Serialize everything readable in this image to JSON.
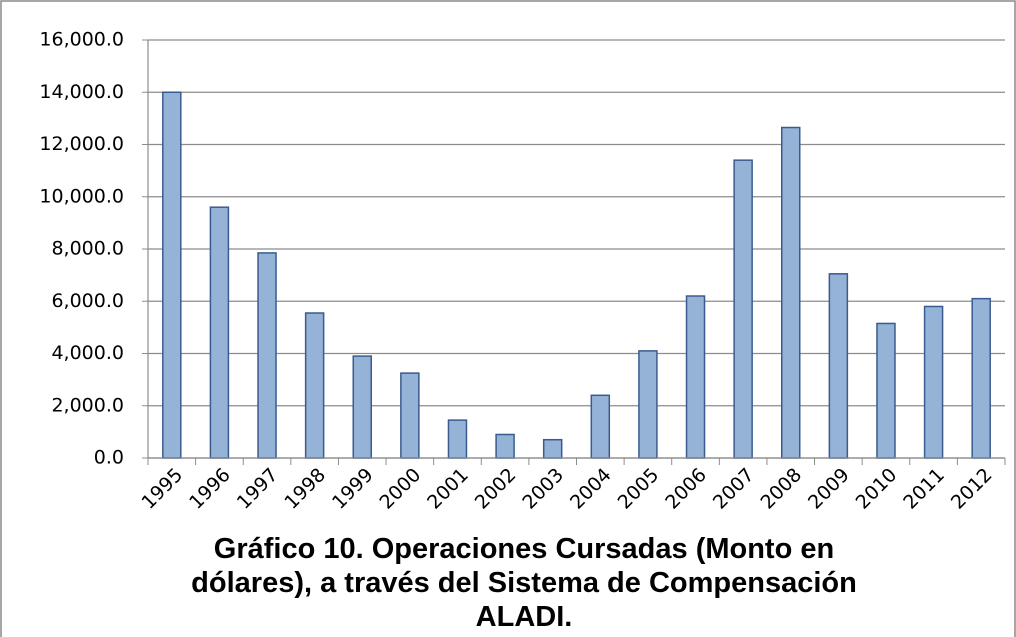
{
  "chart_data": {
    "type": "bar",
    "title": "Gráfico 10. Operaciones Cursadas (Monto en dólares), a través del Sistema de Compensación ALADI.",
    "categories": [
      "1995",
      "1996",
      "1997",
      "1998",
      "1999",
      "2000",
      "2001",
      "2002",
      "2003",
      "2004",
      "2005",
      "2006",
      "2007",
      "2008",
      "2009",
      "2010",
      "2011",
      "2012"
    ],
    "values": [
      14000,
      9600,
      7850,
      5550,
      3900,
      3250,
      1450,
      900,
      700,
      2400,
      4100,
      6200,
      11400,
      12650,
      7050,
      5150,
      5800,
      6100
    ],
    "color": "#95b3d7",
    "ylim": [
      0,
      16000
    ],
    "yticks": [
      {
        "value": 0,
        "label": "0.0"
      },
      {
        "value": 2000,
        "label": "2,000.0"
      },
      {
        "value": 4000,
        "label": "4,000.0"
      },
      {
        "value": 6000,
        "label": "6,000.0"
      },
      {
        "value": 8000,
        "label": "8,000.0"
      },
      {
        "value": 10000,
        "label": "10,000.0"
      },
      {
        "value": 12000,
        "label": "12,000.0"
      },
      {
        "value": 14000,
        "label": "14,000.0"
      },
      {
        "value": 16000,
        "label": "16,000.0"
      }
    ],
    "grid": true
  }
}
